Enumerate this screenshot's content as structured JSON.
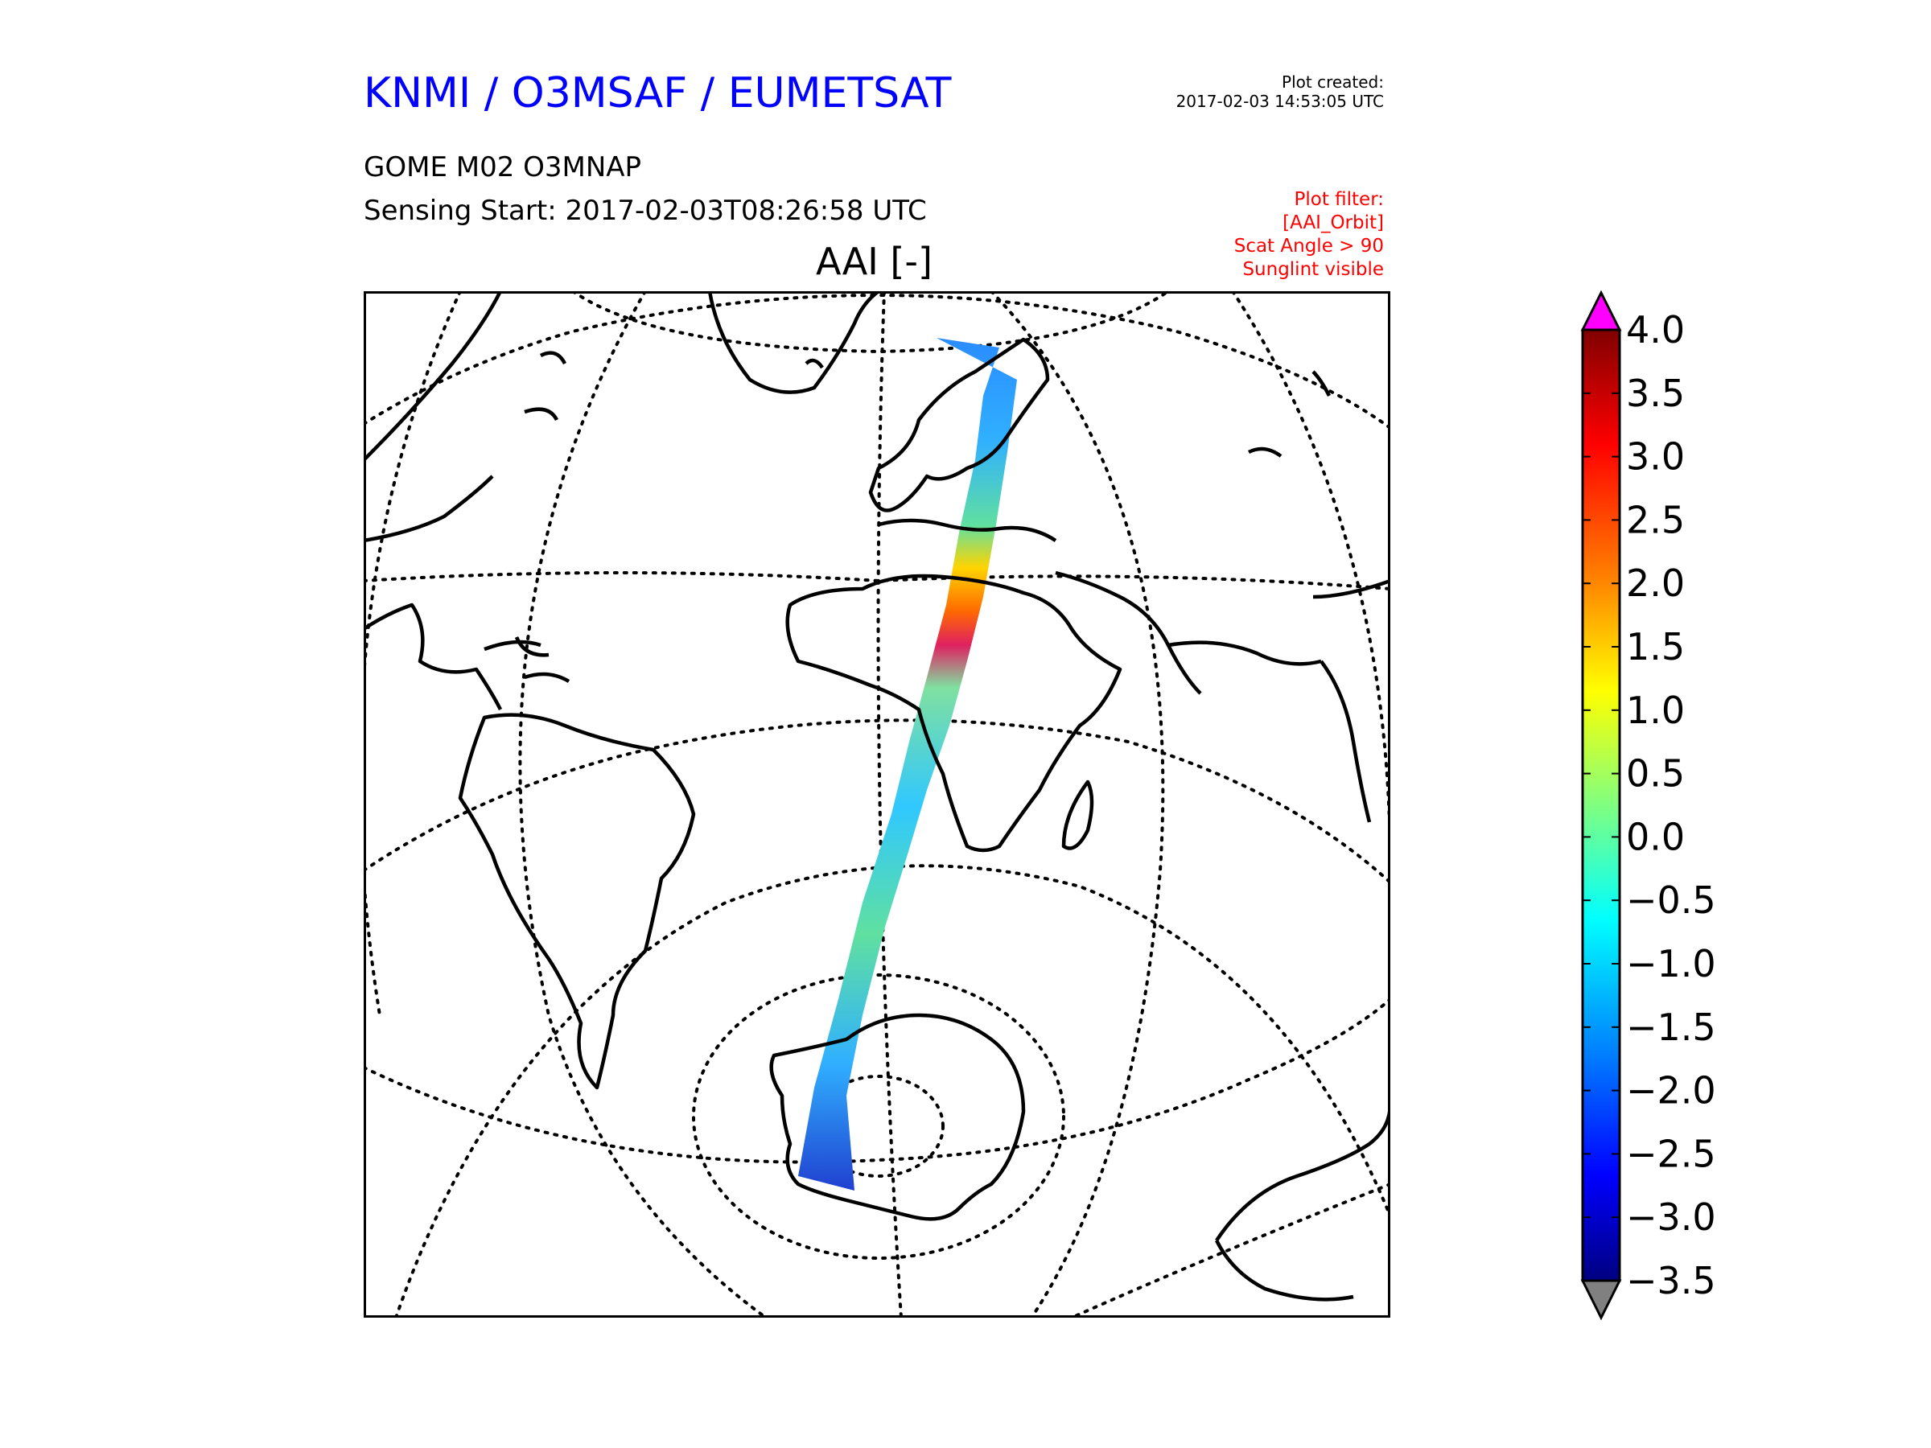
{
  "header": {
    "org": "KNMI / O3MSAF / EUMETSAT",
    "created_label": "Plot created:",
    "created_time": "2017-02-03 14:53:05 UTC",
    "product": "GOME M02 O3MNAP",
    "sensing": "Sensing Start: 2017-02-03T08:26:58 UTC"
  },
  "filter": {
    "lines": [
      "Plot filter:",
      "[AAI_Orbit]",
      "Scat Angle > 90",
      "Sunglint visible"
    ]
  },
  "map": {
    "title": "AAI [-]",
    "projection": "orthographic",
    "swath_overlay": "GOME-2 orbit track",
    "colors": {
      "coast": "#000000",
      "grid": "#000000",
      "frame": "#000000"
    }
  },
  "colorbar": {
    "ticks": [
      "4.0",
      "3.5",
      "3.0",
      "2.5",
      "2.0",
      "1.5",
      "1.0",
      "0.5",
      "0.0",
      "−0.5",
      "−1.0",
      "−1.5",
      "−2.0",
      "−2.5",
      "−3.0",
      "−3.5"
    ],
    "min": -3.5,
    "max": 4.0,
    "over_color": "#ff00ff",
    "under_color": "#808080",
    "gradient": [
      "#800000",
      "#ff0000",
      "#ff8000",
      "#ffff00",
      "#80ff80",
      "#00ffff",
      "#0080ff",
      "#0000ff",
      "#000080"
    ]
  }
}
